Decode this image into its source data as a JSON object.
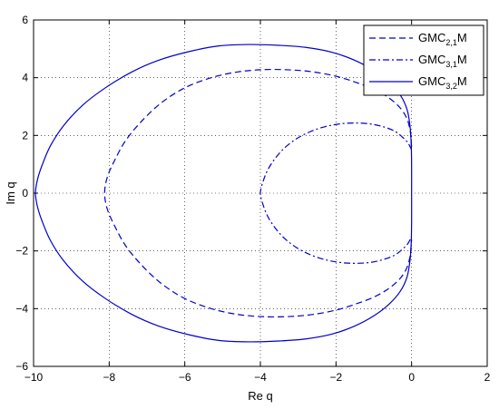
{
  "chart_data": {
    "type": "line",
    "title": "",
    "xlabel": "Re q",
    "ylabel": "Im q",
    "xlim": [
      -10,
      2
    ],
    "ylim": [
      -6,
      6
    ],
    "xticks": [
      -10,
      -8,
      -6,
      -4,
      -2,
      0,
      2
    ],
    "yticks": [
      -6,
      -4,
      -2,
      0,
      2,
      4,
      6
    ],
    "xtick_labels": [
      "−10",
      "−8",
      "−6",
      "−4",
      "−2",
      "0",
      "2"
    ],
    "ytick_labels": [
      "−6",
      "−4",
      "−2",
      "0",
      "2",
      "4",
      "6"
    ],
    "grid": true,
    "grid_style": "dotted",
    "legend_position": "top-right",
    "line_color": "#0000cc",
    "series": [
      {
        "name": "GMC2,1M",
        "legend": {
          "base": "GMC",
          "sub": "2,1",
          "suffix": "M"
        },
        "style": "dashed",
        "x": [
          0.0,
          -0.02,
          -0.05,
          -0.13,
          -0.3,
          -0.6,
          -1.0,
          -1.5,
          -2.0,
          -2.6,
          -3.2,
          -3.9,
          -4.6,
          -5.3,
          -6.0,
          -6.6,
          -7.1,
          -7.55,
          -7.85,
          -8.05,
          -8.12
        ],
        "y": [
          1.6,
          1.95,
          2.25,
          2.6,
          2.95,
          3.3,
          3.6,
          3.85,
          4.05,
          4.2,
          4.27,
          4.28,
          4.2,
          4.0,
          3.65,
          3.15,
          2.55,
          1.85,
          1.15,
          0.55,
          0.0
        ]
      },
      {
        "name": "GMC3,1M",
        "legend": {
          "base": "GMC",
          "sub": "3,1",
          "suffix": "M"
        },
        "style": "dashdot",
        "x": [
          0.0,
          -0.1,
          -0.25,
          -0.45,
          -0.75,
          -1.1,
          -1.5,
          -1.9,
          -2.3,
          -2.7,
          -3.05,
          -3.35,
          -3.6,
          -3.8,
          -3.93,
          -4.0
        ],
        "y": [
          1.5,
          1.75,
          1.95,
          2.15,
          2.3,
          2.4,
          2.43,
          2.4,
          2.3,
          2.12,
          1.88,
          1.58,
          1.22,
          0.82,
          0.4,
          0.0
        ]
      },
      {
        "name": "GMC3,2M",
        "legend": {
          "base": "GMC",
          "sub": "3,2",
          "suffix": "M"
        },
        "style": "solid",
        "x": [
          0.0,
          0.0,
          -0.01,
          -0.04,
          -0.12,
          -0.3,
          -0.6,
          -1.0,
          -1.5,
          -2.1,
          -2.8,
          -3.5,
          -4.3,
          -5.1,
          -5.9,
          -6.7,
          -7.4,
          -8.1,
          -8.7,
          -9.2,
          -9.55,
          -9.78,
          -9.9,
          -9.95
        ],
        "y": [
          0.0,
          1.0,
          1.7,
          2.3,
          2.9,
          3.4,
          3.85,
          4.25,
          4.6,
          4.88,
          5.05,
          5.12,
          5.15,
          5.1,
          4.9,
          4.6,
          4.2,
          3.65,
          3.05,
          2.35,
          1.65,
          0.95,
          0.45,
          0.0
        ]
      }
    ]
  }
}
